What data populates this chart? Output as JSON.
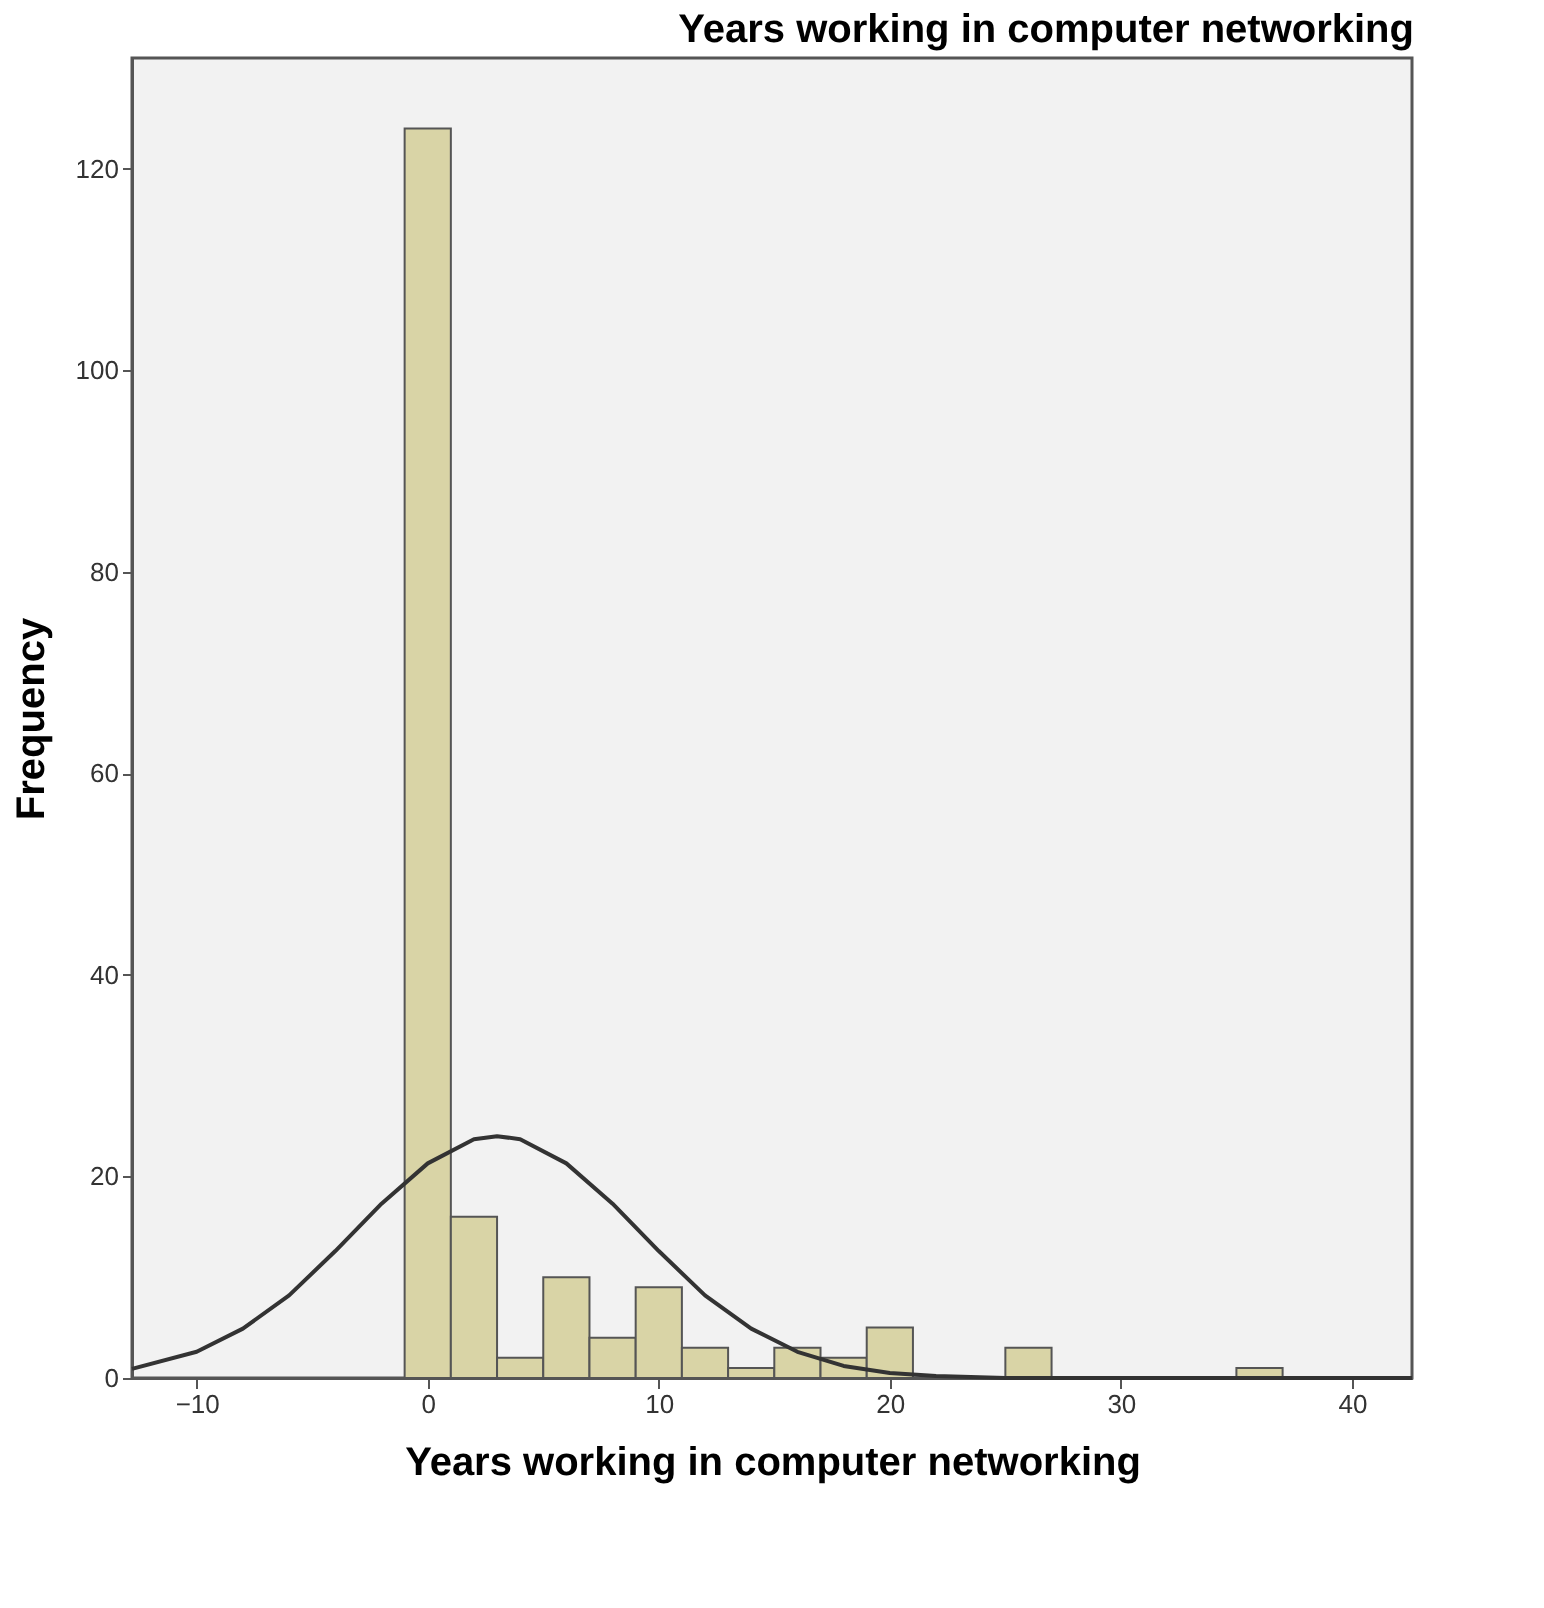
{
  "chart_data": {
    "type": "histogram",
    "title": "Years working in computer networking",
    "xlabel": "Years working in computer networking",
    "ylabel": "Frequency",
    "bins": [
      -1,
      1,
      3,
      5,
      7,
      9,
      11,
      13,
      15,
      17,
      19,
      21,
      23,
      25,
      27,
      29,
      31,
      33,
      35,
      37
    ],
    "values": [
      124,
      16,
      2,
      10,
      4,
      9,
      3,
      1,
      3,
      2,
      5,
      0,
      0,
      3,
      0,
      0,
      0,
      0,
      1
    ],
    "color": "#d9d4a6",
    "series": [
      {
        "type": "line",
        "color": "#333333",
        "x": [
          -12.8,
          -10,
          -8,
          -6,
          -4,
          -2,
          0,
          2,
          3,
          4,
          6,
          8,
          10,
          12,
          14,
          16,
          18,
          20,
          22,
          25,
          30,
          42.6
        ],
        "values": [
          0.9,
          2.6,
          4.9,
          8.2,
          12.6,
          17.3,
          21.3,
          23.7,
          24,
          23.7,
          21.3,
          17.3,
          12.6,
          8.2,
          4.9,
          2.6,
          1.2,
          0.5,
          0.2,
          0,
          0,
          0
        ]
      }
    ],
    "xlim": [
      -12.8,
      42.6
    ],
    "ylim": [
      0,
      131
    ],
    "xticks": [
      -10,
      0,
      10,
      20,
      30,
      40
    ],
    "yticks": [
      0,
      20,
      40,
      60,
      80,
      100,
      120
    ],
    "grid": false
  }
}
